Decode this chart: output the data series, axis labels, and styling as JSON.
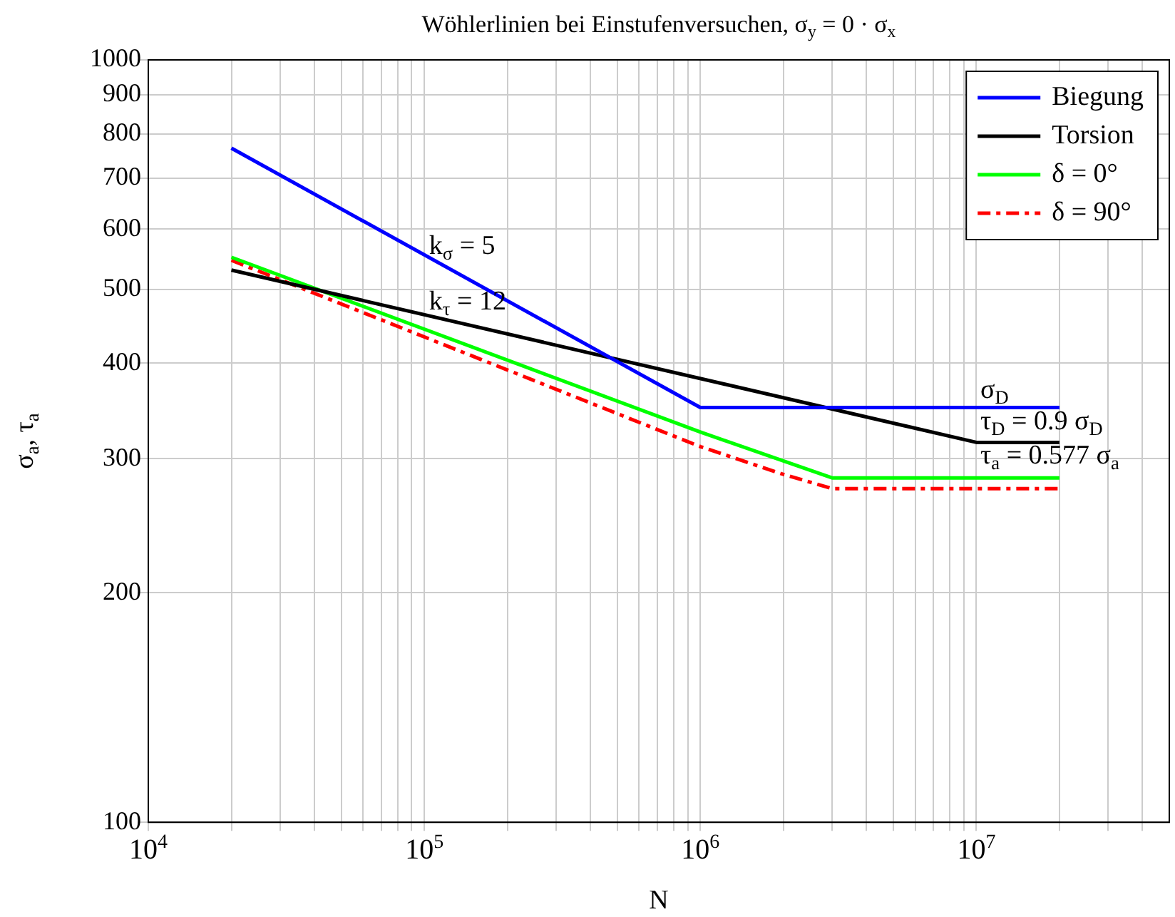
{
  "chart_data": {
    "type": "line",
    "title": "Wöhlerlinien bei Einstufenversuchen, σ$_{y}$ = 0 · σ$_{x}$",
    "xlabel": "N",
    "ylabel": "σ$_{a}$, τ$_{a}$",
    "log": "xy",
    "grid": true,
    "legend": "top right",
    "marker": "none",
    "xlim": [
      10000,
      50000000
    ],
    "xticks": [
      {
        "value": 10000,
        "label": "10$^{4}$"
      },
      {
        "value": 20000,
        "label": null
      },
      {
        "value": 30000,
        "label": null
      },
      {
        "value": 40000,
        "label": null
      },
      {
        "value": 50000,
        "label": null
      },
      {
        "value": 60000,
        "label": null
      },
      {
        "value": 70000,
        "label": null
      },
      {
        "value": 80000,
        "label": null
      },
      {
        "value": 90000,
        "label": null
      },
      {
        "value": 100000,
        "label": "10$^{5}$"
      },
      {
        "value": 200000,
        "label": null
      },
      {
        "value": 300000,
        "label": null
      },
      {
        "value": 400000,
        "label": null
      },
      {
        "value": 500000,
        "label": null
      },
      {
        "value": 600000,
        "label": null
      },
      {
        "value": 700000,
        "label": null
      },
      {
        "value": 800000,
        "label": null
      },
      {
        "value": 900000,
        "label": null
      },
      {
        "value": 1000000,
        "label": "10$^{6}$"
      },
      {
        "value": 2000000,
        "label": null
      },
      {
        "value": 3000000,
        "label": null
      },
      {
        "value": 4000000,
        "label": null
      },
      {
        "value": 5000000,
        "label": null
      },
      {
        "value": 6000000,
        "label": null
      },
      {
        "value": 7000000,
        "label": null
      },
      {
        "value": 8000000,
        "label": null
      },
      {
        "value": 9000000,
        "label": null
      },
      {
        "value": 10000000,
        "label": "10$^{7}$"
      },
      {
        "value": 20000000,
        "label": null
      },
      {
        "value": 30000000,
        "label": null
      },
      {
        "value": 40000000,
        "label": null
      }
    ],
    "ylim": [
      100,
      1000
    ],
    "yticks": [
      100,
      200,
      300,
      400,
      500,
      600,
      700,
      800,
      900,
      1000
    ],
    "series": [
      {
        "name": "Biegung",
        "color": "#0000ff",
        "x": [
          20000,
          1000000,
          20000000
        ],
        "values": [
          766,
          350,
          350
        ],
        "line_style": "solid"
      },
      {
        "name": "Torsion",
        "color": "#000000",
        "x": [
          20000,
          10000000,
          20000000
        ],
        "values": [
          530,
          315,
          315
        ],
        "line_style": "solid"
      },
      {
        "name": "δ = 0°",
        "color": "#00ff00",
        "x": [
          20000,
          1000000,
          3000000,
          20000000
        ],
        "values": [
          551,
          325,
          283,
          283
        ],
        "line_style": "solid"
      },
      {
        "name": "δ = 90°",
        "color": "#ff0000",
        "x": [
          20000,
          1000000,
          2000000,
          3000000,
          20000000
        ],
        "values": [
          546,
          311,
          286,
          274,
          274
        ],
        "line_style": "dashed"
      }
    ],
    "annotations": [
      "k$_{σ}$ = 5",
      "k$_{τ}$ = 12",
      "σ$_{D}$",
      "τ$_{D}$ = 0.9 σ$_{D}$",
      "τ$_{a}$ = 0.577 σ$_{a}$"
    ]
  }
}
